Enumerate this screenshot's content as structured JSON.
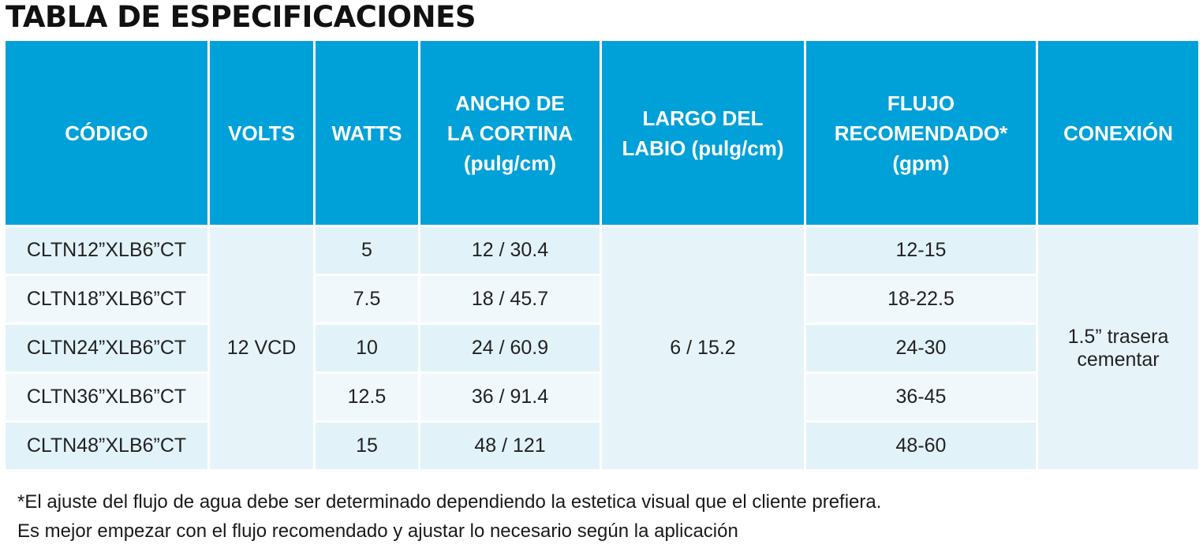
{
  "title": "TABLA DE ESPECIFICACIONES",
  "table": {
    "headers": [
      [
        "CÓDIGO"
      ],
      [
        "VOLTS"
      ],
      [
        "WATTS"
      ],
      [
        "ANCHO DE",
        "LA CORTINA",
        "(pulg/cm)"
      ],
      [
        "LARGO DEL",
        "LABIO (pulg/cm)"
      ],
      [
        "FLUJO",
        "RECOMENDADO*",
        "(gpm)"
      ],
      [
        "CONEXIÓN"
      ]
    ],
    "rows": [
      {
        "codigo": "CLTN12”XLB6”CT",
        "watts": "5",
        "ancho": "12 / 30.4",
        "flujo": "12-15"
      },
      {
        "codigo": "CLTN18”XLB6”CT",
        "watts": "7.5",
        "ancho": "18 / 45.7",
        "flujo": "18-22.5"
      },
      {
        "codigo": "CLTN24”XLB6”CT",
        "watts": "10",
        "ancho": "24 / 60.9",
        "flujo": "24-30"
      },
      {
        "codigo": "CLTN36”XLB6”CT",
        "watts": "12.5",
        "ancho": "36 / 91.4",
        "flujo": "36-45"
      },
      {
        "codigo": "CLTN48”XLB6”CT",
        "watts": "15",
        "ancho": "48 / 121",
        "flujo": "48-60"
      }
    ],
    "merged": {
      "volts": "12 VCD",
      "largo_labio": "6 / 15.2",
      "conexion": [
        "1.5” trasera",
        "cementar"
      ]
    }
  },
  "footnotes": [
    "*El ajuste del flujo de agua debe ser determinado dependiendo la estetica visual que el cliente prefiera.",
    "Es mejor empezar con el flujo recomendado y ajustar lo necesario según la aplicación"
  ]
}
